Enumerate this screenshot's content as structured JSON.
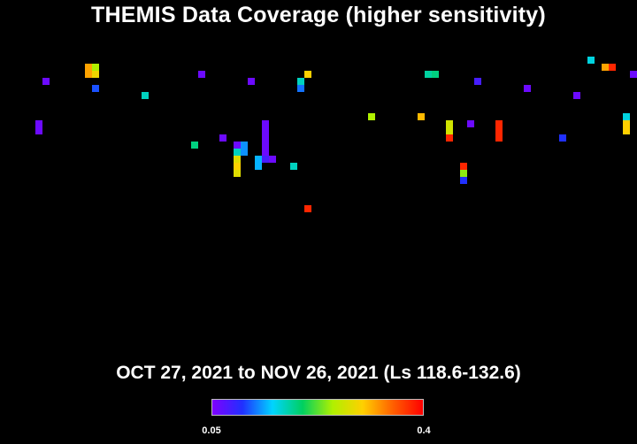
{
  "title": "THEMIS Data Coverage (higher sensitivity)",
  "subtitle": "OCT 27, 2021 to NOV 26, 2021 (Ls 118.6-132.6)",
  "colorbar": {
    "min_label": "0.05",
    "max_label": "0.4",
    "colors": [
      "#7f00ff",
      "#2030ff",
      "#00d4ff",
      "#00d060",
      "#b0f000",
      "#ffd000",
      "#ff6000",
      "#ff0000"
    ]
  },
  "chart_data": {
    "type": "heatmap",
    "title": "THEMIS Data Coverage (higher sensitivity)",
    "subtitle": "OCT 27, 2021 to NOV 26, 2021 (Ls 118.6-132.6)",
    "value_range": [
      0.05,
      0.4
    ],
    "legend": "bottom-center colorbar",
    "grid": false,
    "cells": [
      [
        6,
        11,
        0.06
      ],
      [
        5,
        17,
        0.06
      ],
      [
        5,
        18,
        0.06
      ],
      [
        12,
        9,
        0.32
      ],
      [
        12,
        10,
        0.32
      ],
      [
        13,
        9,
        0.25
      ],
      [
        13,
        10,
        0.29
      ],
      [
        13,
        12,
        0.11
      ],
      [
        20,
        13,
        0.17
      ],
      [
        27,
        20,
        0.19
      ],
      [
        28,
        10,
        0.06
      ],
      [
        31,
        19,
        0.06
      ],
      [
        33,
        20,
        0.06
      ],
      [
        33,
        21,
        0.17
      ],
      [
        33,
        22,
        0.28
      ],
      [
        33,
        23,
        0.3
      ],
      [
        33,
        24,
        0.28
      ],
      [
        34,
        20,
        0.13
      ],
      [
        34,
        21,
        0.13
      ],
      [
        35,
        11,
        0.06
      ],
      [
        36,
        22,
        0.14
      ],
      [
        36,
        23,
        0.14
      ],
      [
        37,
        17,
        0.06
      ],
      [
        37,
        18,
        0.06
      ],
      [
        37,
        19,
        0.06
      ],
      [
        37,
        20,
        0.06
      ],
      [
        37,
        21,
        0.06
      ],
      [
        37,
        22,
        0.08
      ],
      [
        38,
        22,
        0.06
      ],
      [
        41,
        23,
        0.17
      ],
      [
        42,
        11,
        0.17
      ],
      [
        42,
        12,
        0.12
      ],
      [
        43,
        10,
        0.3
      ],
      [
        43,
        29,
        0.38
      ],
      [
        52,
        16,
        0.25
      ],
      [
        59,
        16,
        0.31
      ],
      [
        60,
        10,
        0.18
      ],
      [
        61,
        10,
        0.19
      ],
      [
        63,
        17,
        0.27
      ],
      [
        63,
        18,
        0.27
      ],
      [
        63,
        19,
        0.38
      ],
      [
        65,
        23,
        0.38
      ],
      [
        65,
        24,
        0.24
      ],
      [
        65,
        25,
        0.1
      ],
      [
        66,
        17,
        0.06
      ],
      [
        67,
        11,
        0.08
      ],
      [
        70,
        17,
        0.38
      ],
      [
        70,
        18,
        0.38
      ],
      [
        70,
        19,
        0.38
      ],
      [
        74,
        12,
        0.06
      ],
      [
        79,
        19,
        0.1
      ],
      [
        81,
        13,
        0.06
      ],
      [
        83,
        8,
        0.16
      ],
      [
        85,
        9,
        0.32
      ],
      [
        86,
        9,
        0.38
      ],
      [
        88,
        16,
        0.16
      ],
      [
        88,
        17,
        0.3
      ],
      [
        88,
        18,
        0.3
      ],
      [
        89,
        10,
        0.06
      ]
    ]
  }
}
